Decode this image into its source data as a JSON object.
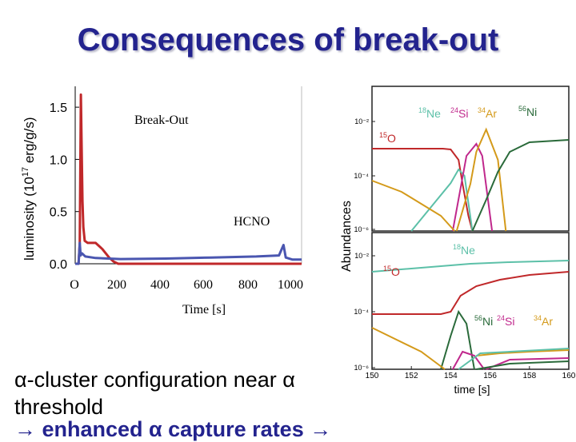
{
  "slide": {
    "title": "Consequences of break-out",
    "bullet_line1": "α-cluster configuration near α",
    "bullet_line2": "threshold",
    "cutoff_line": "→ enhanced α capture rates →"
  },
  "chart_data": [
    {
      "type": "line",
      "ylabel": "luminosity (10^17 erg/g/s)",
      "ylabel_main": "luminosity (10",
      "ylabel_exp": "17",
      "ylabel_unit": " erg/g/s)",
      "xlabel": "Time  [s]",
      "xlim": [
        0,
        1000
      ],
      "ylim": [
        0,
        1.7
      ],
      "y_ticks": [
        "0.0",
        "0.5",
        "1.0",
        "1.5"
      ],
      "x_ticks": [
        "O",
        "200",
        "400",
        "600",
        "800",
        "1000"
      ],
      "annotations": [
        "Break-Out",
        "HCNO"
      ],
      "series": [
        {
          "color": "#c0282a",
          "points": [
            [
              0,
              0
            ],
            [
              15,
              0
            ],
            [
              20,
              0.2
            ],
            [
              25,
              1.62
            ],
            [
              28,
              1.2
            ],
            [
              32,
              0.6
            ],
            [
              36,
              0.35
            ],
            [
              42,
              0.22
            ],
            [
              55,
              0.2
            ],
            [
              90,
              0.2
            ],
            [
              120,
              0.14
            ],
            [
              150,
              0.06
            ],
            [
              170,
              0.02
            ],
            [
              190,
              0
            ],
            [
              1000,
              0
            ]
          ]
        },
        {
          "color": "#4a56b0",
          "points": [
            [
              0,
              0
            ],
            [
              15,
              0
            ],
            [
              20,
              0.2
            ],
            [
              24,
              0.08
            ],
            [
              30,
              0.1
            ],
            [
              45,
              0.07
            ],
            [
              90,
              0.055
            ],
            [
              200,
              0.045
            ],
            [
              400,
              0.05
            ],
            [
              600,
              0.06
            ],
            [
              800,
              0.07
            ],
            [
              900,
              0.08
            ],
            [
              920,
              0.18
            ],
            [
              930,
              0.06
            ],
            [
              960,
              0.04
            ],
            [
              1000,
              0.04
            ]
          ]
        }
      ]
    },
    {
      "type": "line",
      "ylabel": "Abundances",
      "xlabel": "time   [s]",
      "xlim": [
        150,
        160
      ],
      "x_ticks": [
        "150",
        "152",
        "154",
        "156",
        "158",
        "160"
      ],
      "top_panel": {
        "y_ticks": [
          "10⁻²",
          "10⁻⁴",
          "10⁻⁶"
        ],
        "labels": [
          {
            "mass": "18",
            "el": "Ne",
            "color": "#5cc0a8"
          },
          {
            "mass": "24",
            "el": "Si",
            "color": "#c0288c"
          },
          {
            "mass": "34",
            "el": "Ar",
            "color": "#d49a1a"
          },
          {
            "mass": "56",
            "el": "Ni",
            "color": "#2a6a3a"
          },
          {
            "mass": "15",
            "el": "O",
            "color": "#c0282a"
          }
        ]
      },
      "bottom_panel": {
        "y_ticks": [
          "10⁻²",
          "10⁻⁴",
          "10⁻⁶"
        ],
        "labels": [
          {
            "mass": "18",
            "el": "Ne",
            "color": "#5cc0a8"
          },
          {
            "mass": "15",
            "el": "O",
            "color": "#c0282a"
          },
          {
            "mass": "56",
            "el": "Ni",
            "color": "#2a6a3a"
          },
          {
            "mass": "24",
            "el": "Si",
            "color": "#c0288c"
          },
          {
            "mass": "34",
            "el": "Ar",
            "color": "#d49a1a"
          }
        ]
      }
    }
  ]
}
